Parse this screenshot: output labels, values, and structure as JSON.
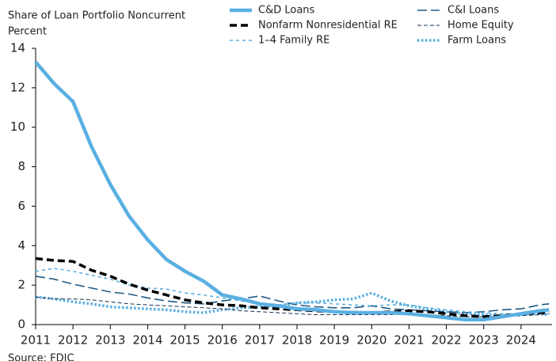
{
  "chart_data": {
    "type": "line",
    "title": "Share of Loan Portfolio Noncurrent",
    "y_label": "Percent",
    "source": "Source: FDIC",
    "x": [
      2011,
      2011.5,
      2012,
      2012.5,
      2013,
      2013.5,
      2014,
      2014.5,
      2015,
      2015.5,
      2016,
      2016.5,
      2017,
      2017.5,
      2018,
      2018.5,
      2019,
      2019.5,
      2020,
      2020.5,
      2021,
      2021.5,
      2022,
      2022.5,
      2023,
      2023.5,
      2024,
      2024.5,
      2024.75
    ],
    "xlim": [
      2011,
      2024.83
    ],
    "xticks": [
      2011,
      2012,
      2013,
      2014,
      2015,
      2016,
      2017,
      2018,
      2019,
      2020,
      2021,
      2022,
      2023,
      2024
    ],
    "ylim": [
      0,
      14
    ],
    "yticks": [
      0,
      2,
      4,
      6,
      8,
      10,
      12,
      14
    ],
    "series": [
      {
        "name": "C&D Loans",
        "color": "#5aafe2",
        "width": 4.5,
        "dash": "none",
        "values": [
          13.3,
          12.2,
          11.3,
          9.0,
          7.1,
          5.5,
          4.3,
          3.3,
          2.7,
          2.2,
          1.5,
          1.3,
          1.05,
          0.95,
          0.8,
          0.75,
          0.65,
          0.6,
          0.6,
          0.6,
          0.55,
          0.45,
          0.35,
          0.25,
          0.25,
          0.4,
          0.55,
          0.7,
          0.75
        ]
      },
      {
        "name": "C&I Loans",
        "color": "#1f5a85",
        "width": 1.6,
        "dash": "12 5",
        "values": [
          2.45,
          2.3,
          2.05,
          1.85,
          1.65,
          1.55,
          1.35,
          1.2,
          1.1,
          1.05,
          1.2,
          1.3,
          1.45,
          1.2,
          1.0,
          0.9,
          0.85,
          0.85,
          0.95,
          0.8,
          0.75,
          0.7,
          0.65,
          0.6,
          0.65,
          0.75,
          0.8,
          1.0,
          1.05
        ]
      },
      {
        "name": "Nonfarm Nonresidential RE",
        "color": "#000000",
        "width": 3.5,
        "dash": "9 5",
        "values": [
          3.35,
          3.25,
          3.2,
          2.75,
          2.45,
          2.05,
          1.75,
          1.5,
          1.25,
          1.1,
          1.0,
          0.95,
          0.85,
          0.8,
          0.75,
          0.7,
          0.65,
          0.62,
          0.6,
          0.65,
          0.7,
          0.65,
          0.55,
          0.45,
          0.4,
          0.45,
          0.55,
          0.6,
          0.65
        ]
      },
      {
        "name": "Home Equity",
        "color": "#14304f",
        "width": 1,
        "dash": "5 3",
        "values": [
          1.4,
          1.3,
          1.3,
          1.25,
          1.15,
          1.05,
          1.0,
          0.95,
          0.9,
          0.85,
          0.8,
          0.7,
          0.65,
          0.6,
          0.55,
          0.5,
          0.5,
          0.5,
          0.5,
          0.5,
          0.55,
          0.5,
          0.45,
          0.4,
          0.4,
          0.4,
          0.45,
          0.5,
          0.55
        ]
      },
      {
        "name": "1–4 Family RE",
        "color": "#5aafe2",
        "width": 1.6,
        "dash": "4 4",
        "values": [
          2.7,
          2.85,
          2.7,
          2.5,
          2.3,
          2.0,
          1.85,
          1.8,
          1.6,
          1.5,
          1.35,
          1.2,
          1.05,
          1.0,
          1.1,
          1.1,
          1.05,
          1.0,
          0.95,
          1.0,
          1.0,
          0.85,
          0.75,
          0.65,
          0.6,
          0.55,
          0.55,
          0.55,
          0.55
        ]
      },
      {
        "name": "Farm Loans",
        "color": "#5aafe2",
        "width": 3.5,
        "dash": "2.5 2.5",
        "values": [
          1.4,
          1.3,
          1.15,
          1.05,
          0.9,
          0.85,
          0.8,
          0.75,
          0.65,
          0.6,
          0.75,
          0.85,
          0.9,
          0.95,
          1.1,
          1.15,
          1.25,
          1.3,
          1.6,
          1.2,
          0.95,
          0.8,
          0.65,
          0.55,
          0.5,
          0.45,
          0.5,
          0.55,
          0.5
        ]
      }
    ]
  }
}
